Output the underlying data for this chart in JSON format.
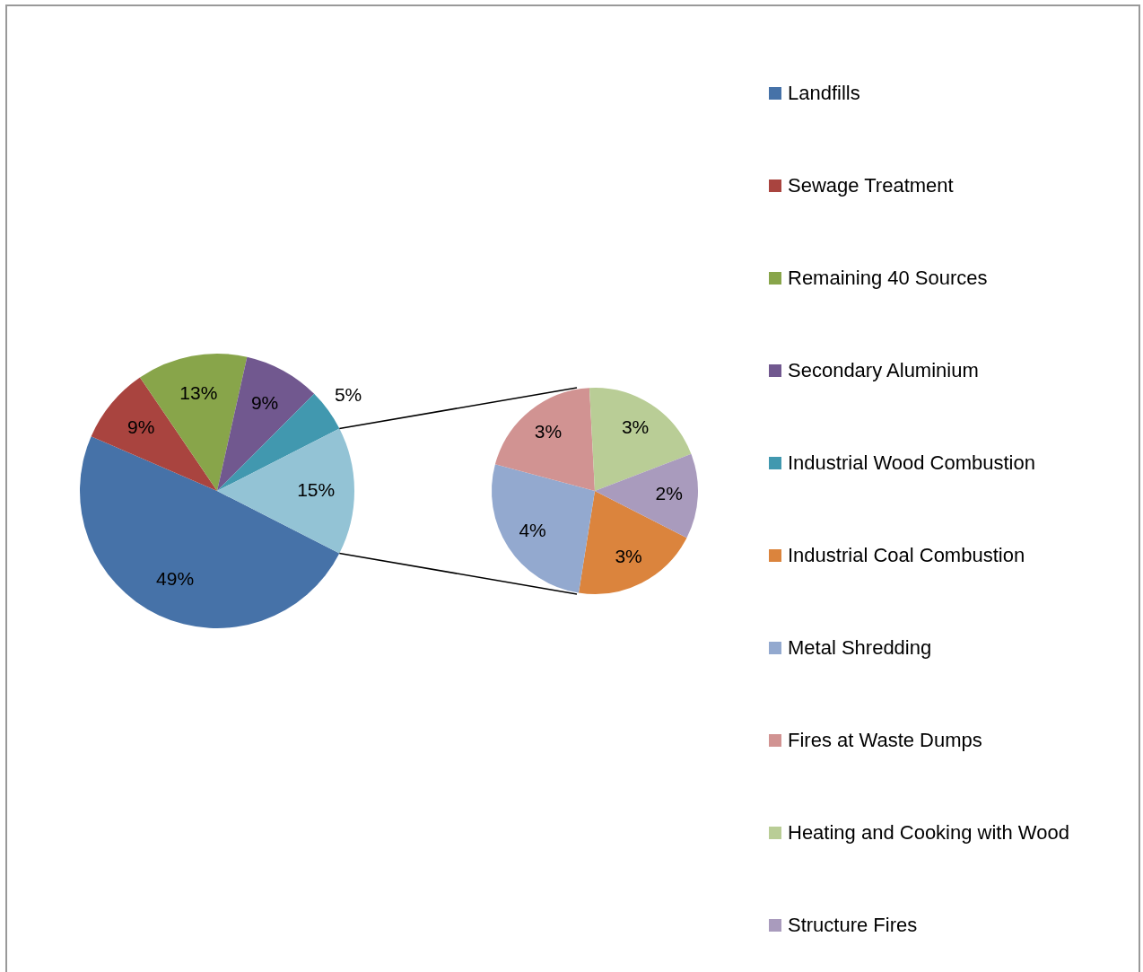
{
  "chart_data": [
    {
      "type": "pie",
      "categories": [
        "Landfills",
        "Sewage Treatment",
        "Remaining 40 Sources",
        "Secondary Aluminium",
        "Industrial Wood Combustion",
        null
      ],
      "values": [
        49,
        9,
        13,
        9,
        5,
        15
      ],
      "colors": [
        "#4672a8",
        "#a9443f",
        "#88a54a",
        "#71588f",
        "#4198af",
        "#93c3d5"
      ],
      "value_labels": [
        "49%",
        "9%",
        "13%",
        "9%",
        "5%",
        "15%"
      ],
      "legend": "right"
    },
    {
      "type": "pie",
      "categories": [
        "Industrial Coal Combustion",
        "Metal Shredding",
        "Fires at Waste Dumps",
        "Heating and Cooking with Wood",
        "Structure Fires"
      ],
      "values": [
        3,
        4,
        3,
        3,
        2
      ],
      "colors": [
        "#db843d",
        "#93a9cf",
        "#d19392",
        "#b9cd96",
        "#a99bbd"
      ],
      "value_labels": [
        "3%",
        "4%",
        "3%",
        "3%",
        "2%"
      ],
      "legend": "right"
    }
  ]
}
